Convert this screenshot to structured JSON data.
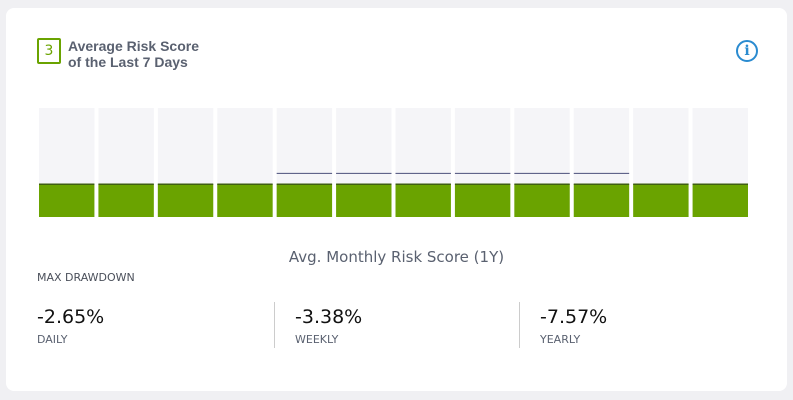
{
  "header": {
    "badge": "3",
    "title": "Average Risk Score of the Last 7 Days"
  },
  "chart_data": {
    "type": "bar",
    "title": "Avg. Monthly Risk Score (1Y)",
    "categories": [
      null,
      null,
      null,
      null,
      null,
      null,
      null,
      null,
      null,
      null,
      null,
      null
    ],
    "ylim": [
      0,
      10
    ],
    "series": [
      {
        "color": "#6aa300",
        "values": [
          3,
          3,
          3,
          3,
          3,
          3,
          3,
          3,
          3,
          3,
          3,
          3
        ]
      },
      {
        "color": "#4a4f7a",
        "values": [
          null,
          null,
          null,
          null,
          4,
          4,
          4,
          4,
          4,
          4,
          null,
          null
        ]
      }
    ]
  },
  "drawdown": {
    "label": "MAX DRAWDOWN",
    "items": [
      {
        "value": "-2.65%",
        "period": "DAILY"
      },
      {
        "value": "-3.38%",
        "period": "WEEKLY"
      },
      {
        "value": "-7.57%",
        "period": "YEARLY"
      }
    ]
  }
}
